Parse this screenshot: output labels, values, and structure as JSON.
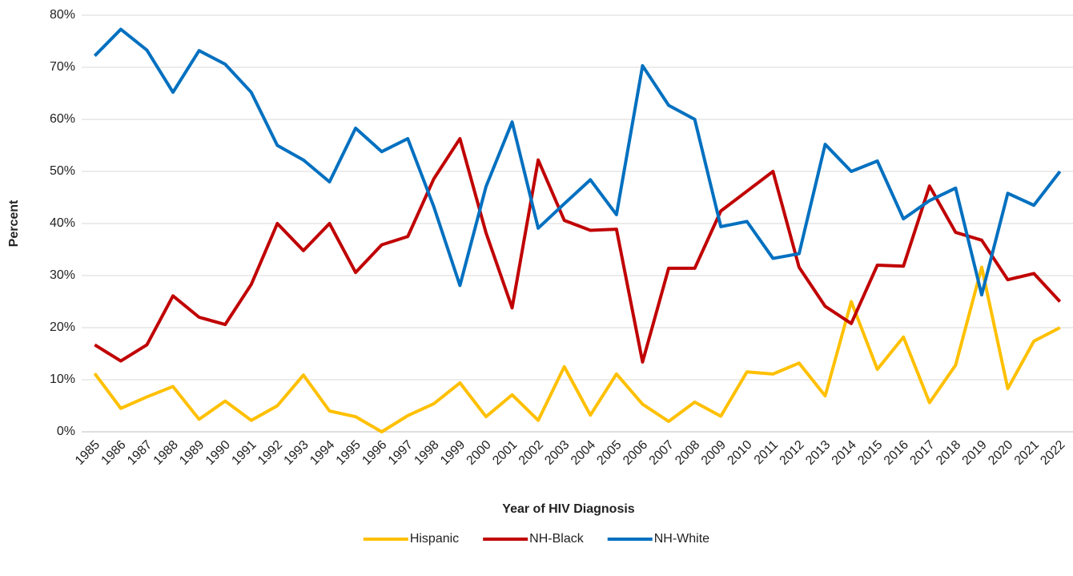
{
  "chart_data": {
    "type": "line",
    "x_label": "Year of HIV Diagnosis",
    "y_label": "Percent",
    "categories": [
      "1985",
      "1986",
      "1987",
      "1988",
      "1989",
      "1990",
      "1991",
      "1992",
      "1993",
      "1994",
      "1995",
      "1996",
      "1997",
      "1998",
      "1999",
      "2000",
      "2001",
      "2002",
      "2003",
      "2004",
      "2005",
      "2006",
      "2007",
      "2008",
      "2009",
      "2010",
      "2011",
      "2012",
      "2013",
      "2014",
      "2015",
      "2016",
      "2017",
      "2018",
      "2019",
      "2020",
      "2021",
      "2022"
    ],
    "series": [
      {
        "name": "Hispanic",
        "color": "#ffc000",
        "values": [
          11.2,
          4.5,
          6.7,
          8.7,
          2.4,
          5.9,
          2.2,
          5.0,
          10.9,
          4.0,
          2.9,
          0,
          3.1,
          5.4,
          9.4,
          2.9,
          7.1,
          2.2,
          12.5,
          3.2,
          11.1,
          5.3,
          2.0,
          5.7,
          3.0,
          11.5,
          11.1,
          13.2,
          6.9,
          25.0,
          12.0,
          18.2,
          5.6,
          12.8,
          31.6,
          8.3,
          17.4,
          20.0
        ]
      },
      {
        "name": "NH-Black",
        "color": "#c00000",
        "values": [
          16.7,
          13.6,
          16.7,
          26.1,
          22.0,
          20.6,
          28.3,
          40.0,
          34.8,
          40.0,
          30.6,
          35.9,
          37.5,
          48.6,
          56.3,
          38.2,
          23.8,
          52.2,
          40.6,
          38.7,
          38.9,
          13.4,
          31.4,
          31.4,
          42.4,
          46.2,
          50.0,
          31.6,
          24.1,
          20.8,
          32.0,
          31.8,
          47.2,
          38.3,
          36.8,
          29.2,
          30.4,
          25.0
        ]
      },
      {
        "name": "NH-White",
        "color": "#0070c0",
        "values": [
          72.2,
          77.3,
          73.3,
          65.2,
          73.2,
          70.6,
          65.2,
          55.0,
          52.2,
          48.0,
          58.3,
          53.8,
          56.3,
          43.2,
          28.1,
          47.1,
          59.5,
          39.1,
          43.8,
          48.4,
          41.7,
          70.3,
          62.7,
          60.0,
          39.4,
          40.4,
          33.3,
          34.2,
          55.2,
          50.0,
          52.0,
          40.9,
          44.4,
          46.8,
          26.3,
          45.8,
          43.5,
          50.0
        ]
      }
    ],
    "ylim": [
      0,
      80
    ],
    "yticks": [
      {
        "value": 0,
        "label": "0%"
      },
      {
        "value": 10,
        "label": "10%"
      },
      {
        "value": 20,
        "label": "20%"
      },
      {
        "value": 30,
        "label": "30%"
      },
      {
        "value": 40,
        "label": "40%"
      },
      {
        "value": 50,
        "label": "50%"
      },
      {
        "value": 60,
        "label": "60%"
      },
      {
        "value": 70,
        "label": "70%"
      },
      {
        "value": 80,
        "label": "80%"
      }
    ],
    "grid": true,
    "legend": "bottom"
  }
}
